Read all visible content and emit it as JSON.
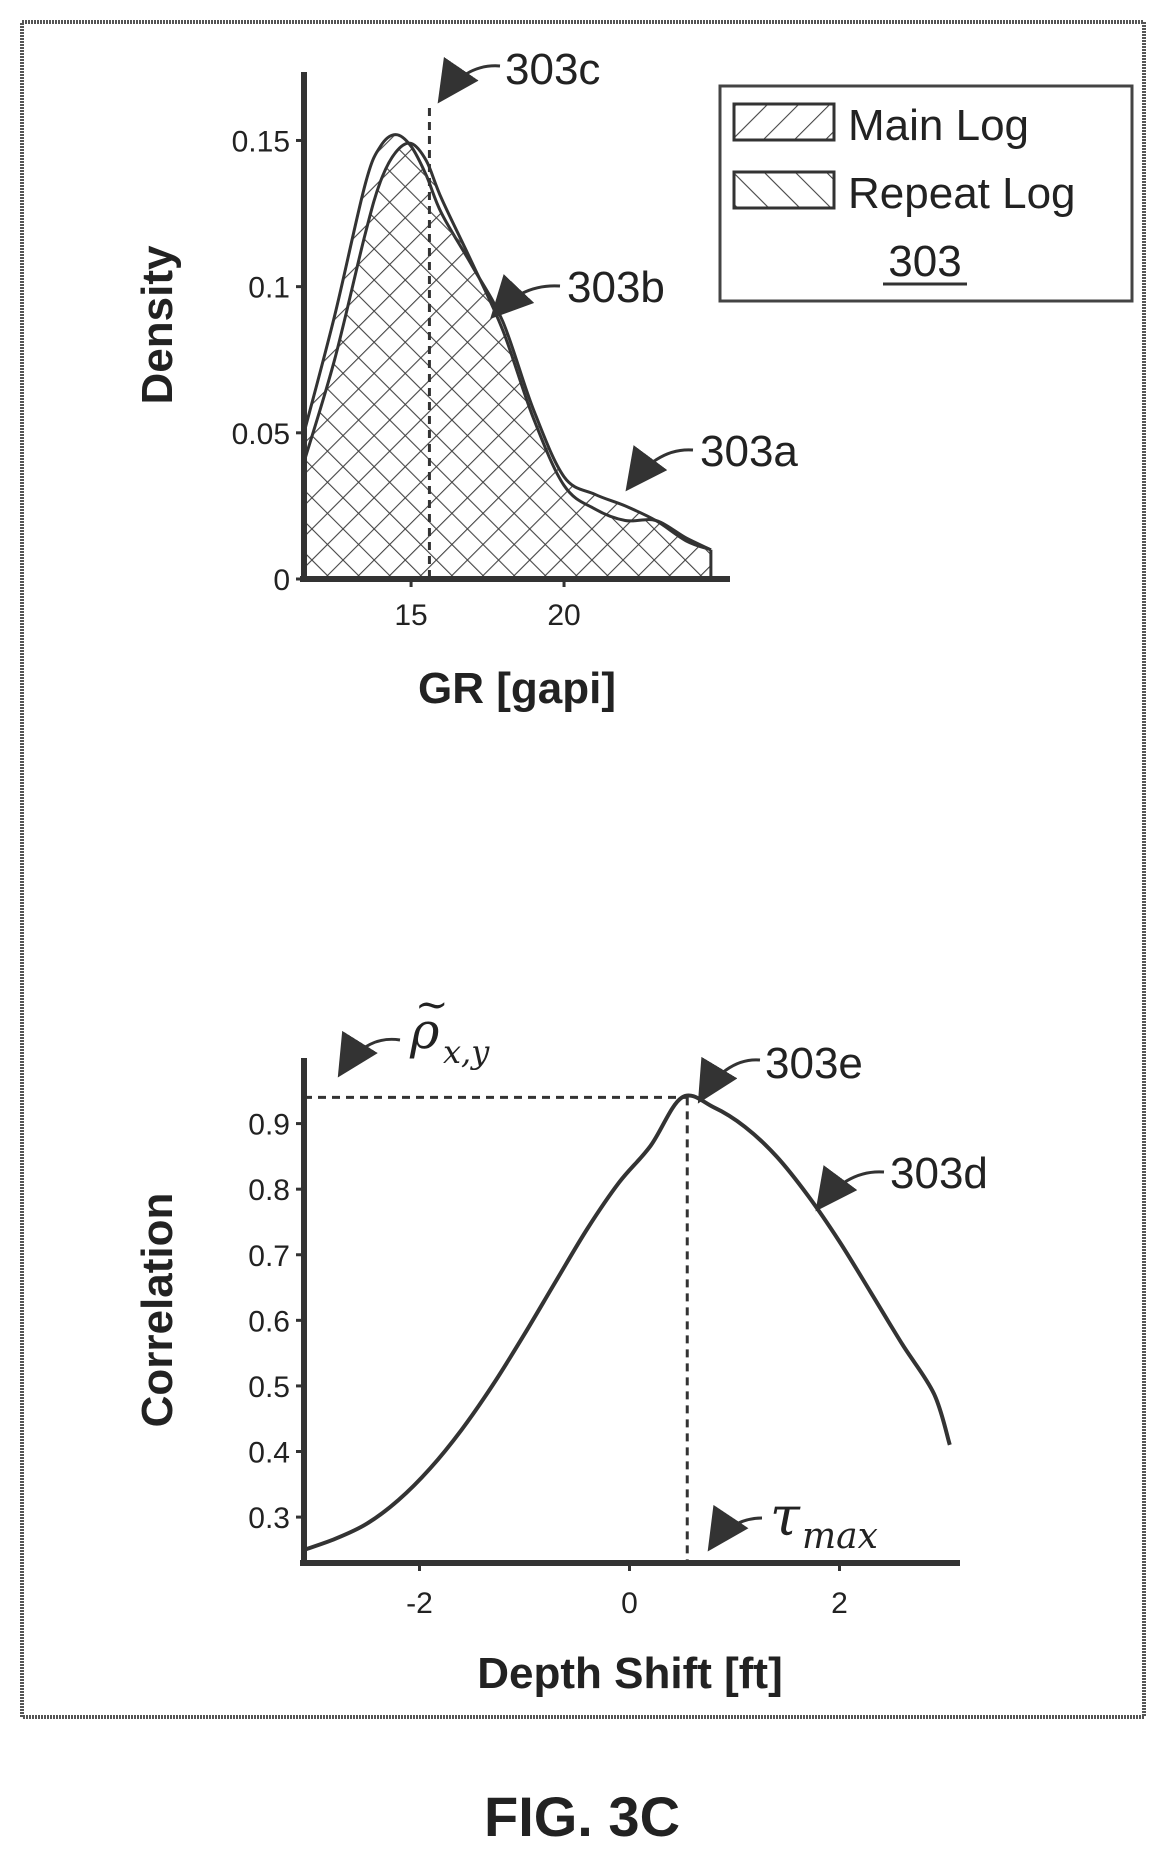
{
  "figure_label": "FIG. 3C",
  "chart_data": [
    {
      "type": "area",
      "xlabel": "GR [gapi]",
      "ylabel": "Density",
      "xlim": [
        11.5,
        25
      ],
      "ylim": [
        0,
        0.17
      ],
      "xticks": [
        "15",
        "20"
      ],
      "xtick_values": [
        15,
        20
      ],
      "yticks": [
        "0",
        "0.05",
        "0.1",
        "0.15"
      ],
      "ytick_values": [
        0,
        0.05,
        0.1,
        0.15
      ],
      "legend_placement": "top-right",
      "legend_ref": "303",
      "series": [
        {
          "name": "Main Log",
          "hatch": "forward-diagonal",
          "x": [
            11.5,
            12.5,
            13.5,
            14.0,
            14.5,
            15.0,
            15.5,
            16.0,
            17.0,
            18.0,
            19.0,
            20.0,
            21.0,
            22.0,
            23.0,
            24.0,
            24.8
          ],
          "y": [
            0.05,
            0.09,
            0.135,
            0.148,
            0.152,
            0.148,
            0.138,
            0.125,
            0.107,
            0.088,
            0.058,
            0.035,
            0.029,
            0.025,
            0.02,
            0.013,
            0.01
          ]
        },
        {
          "name": "Repeat Log",
          "hatch": "backward-diagonal",
          "x": [
            11.5,
            12.5,
            13.5,
            14.0,
            14.5,
            15.0,
            15.5,
            16.0,
            17.0,
            18.0,
            19.0,
            20.0,
            21.0,
            22.0,
            23.0,
            24.0,
            24.8
          ],
          "y": [
            0.04,
            0.075,
            0.118,
            0.136,
            0.146,
            0.149,
            0.143,
            0.13,
            0.108,
            0.085,
            0.055,
            0.032,
            0.024,
            0.02,
            0.02,
            0.014,
            0.01
          ]
        }
      ],
      "annotations": [
        {
          "label": "303c",
          "target": [
            15.6,
            0.13
          ],
          "note": "dashed vertical line"
        },
        {
          "label": "303b",
          "target": [
            18.2,
            0.085
          ]
        },
        {
          "label": "303a",
          "target": [
            21.5,
            0.028
          ]
        }
      ],
      "vline_x": 15.6
    },
    {
      "type": "line",
      "xlabel": "Depth Shift [ft]",
      "ylabel": "Correlation",
      "xlim": [
        -3.1,
        3.1
      ],
      "ylim": [
        0.23,
        1.0
      ],
      "xticks": [
        "-2",
        "0",
        "2"
      ],
      "xtick_values": [
        -2,
        0,
        2
      ],
      "yticks": [
        "0.3",
        "0.4",
        "0.5",
        "0.6",
        "0.7",
        "0.8",
        "0.9"
      ],
      "ytick_values": [
        0.3,
        0.4,
        0.5,
        0.6,
        0.7,
        0.8,
        0.9
      ],
      "series": [
        {
          "ref": "303d",
          "x": [
            -3.1,
            -2.8,
            -2.5,
            -2.2,
            -1.9,
            -1.6,
            -1.3,
            -1.0,
            -0.7,
            -0.4,
            -0.1,
            0.2,
            0.5,
            0.8,
            1.1,
            1.4,
            1.7,
            2.0,
            2.3,
            2.6,
            2.9,
            3.05
          ],
          "y": [
            0.25,
            0.267,
            0.29,
            0.326,
            0.374,
            0.433,
            0.502,
            0.579,
            0.66,
            0.74,
            0.81,
            0.866,
            0.94,
            0.925,
            0.895,
            0.85,
            0.79,
            0.72,
            0.642,
            0.563,
            0.488,
            0.41
          ]
        }
      ],
      "peak": {
        "x": 0.55,
        "y": 0.94
      },
      "annotations": [
        {
          "label": "303e",
          "target": [
            0.55,
            0.94
          ]
        },
        {
          "label": "303d",
          "target": [
            1.75,
            0.79
          ]
        }
      ],
      "rho_label": {
        "symbol": "ρ",
        "subscript": "x,y",
        "tilde": "~"
      },
      "tau_label": {
        "symbol": "τ",
        "subscript": "max"
      }
    }
  ]
}
